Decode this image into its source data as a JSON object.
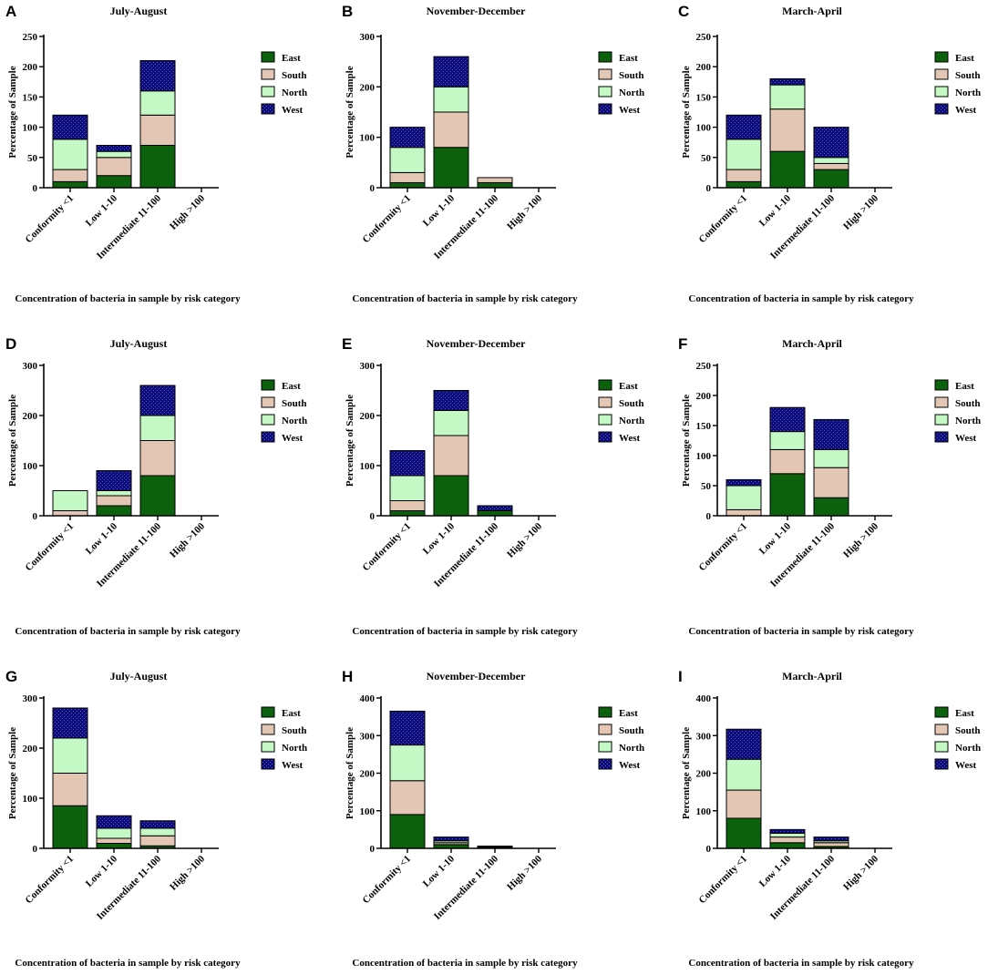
{
  "colors": {
    "East": "#0c620c",
    "South": "#e3c7b4",
    "North": "#c4f8c4",
    "West": "#0b0c7a",
    "axis": "#000000"
  },
  "chart_data": [
    {
      "panel": "A",
      "type": "bar",
      "stacked": true,
      "title": "July-August",
      "ylabel": "Percentage of Sample",
      "xlabel": "Concentration of bacteria in sample by risk category",
      "categories": [
        "Conformity <1",
        "Low 1-10",
        "Intermediate 11-100",
        "High >100"
      ],
      "ylim": [
        0,
        250
      ],
      "yticks": [
        0,
        50,
        100,
        150,
        200,
        250
      ],
      "legend": [
        "East",
        "South",
        "North",
        "West"
      ],
      "series": [
        {
          "name": "East",
          "values": [
            10,
            20,
            70,
            0
          ]
        },
        {
          "name": "South",
          "values": [
            20,
            30,
            50,
            0
          ]
        },
        {
          "name": "North",
          "values": [
            50,
            10,
            40,
            0
          ]
        },
        {
          "name": "West",
          "values": [
            40,
            10,
            50,
            0
          ]
        }
      ]
    },
    {
      "panel": "B",
      "type": "bar",
      "stacked": true,
      "title": "November-December",
      "ylabel": "Percentage of Sample",
      "xlabel": "Concentration of bacteria in sample by risk category",
      "categories": [
        "Conformity <1",
        "Low 1-10",
        "Intermediate 11-100",
        "High >100"
      ],
      "ylim": [
        0,
        300
      ],
      "yticks": [
        0,
        100,
        200,
        300
      ],
      "legend": [
        "East",
        "South",
        "North",
        "West"
      ],
      "series": [
        {
          "name": "East",
          "values": [
            10,
            80,
            10,
            0
          ]
        },
        {
          "name": "South",
          "values": [
            20,
            70,
            10,
            0
          ]
        },
        {
          "name": "North",
          "values": [
            50,
            50,
            0,
            0
          ]
        },
        {
          "name": "West",
          "values": [
            40,
            60,
            0,
            0
          ]
        }
      ]
    },
    {
      "panel": "C",
      "type": "bar",
      "stacked": true,
      "title": "March-April",
      "ylabel": "Percentage of Sample",
      "xlabel": "Concentration of bacteria in sample by risk category",
      "categories": [
        "Conformity <1",
        "Low 1-10",
        "Intermediate 11-100",
        "High >100"
      ],
      "ylim": [
        0,
        250
      ],
      "yticks": [
        0,
        50,
        100,
        150,
        200,
        250
      ],
      "legend": [
        "East",
        "South",
        "North",
        "West"
      ],
      "series": [
        {
          "name": "East",
          "values": [
            10,
            60,
            30,
            0
          ]
        },
        {
          "name": "South",
          "values": [
            20,
            70,
            10,
            0
          ]
        },
        {
          "name": "North",
          "values": [
            50,
            40,
            10,
            0
          ]
        },
        {
          "name": "West",
          "values": [
            40,
            10,
            50,
            0
          ]
        }
      ]
    },
    {
      "panel": "D",
      "type": "bar",
      "stacked": true,
      "title": "July-August",
      "ylabel": "Percentage of Sample",
      "xlabel": "Concentration of bacteria in sample by risk category",
      "categories": [
        "Conformity <1",
        "Low 1-10",
        "Intermediate 11-100",
        "High >100"
      ],
      "ylim": [
        0,
        300
      ],
      "yticks": [
        0,
        100,
        200,
        300
      ],
      "legend": [
        "East",
        "South",
        "North",
        "West"
      ],
      "series": [
        {
          "name": "East",
          "values": [
            0,
            20,
            80,
            0
          ]
        },
        {
          "name": "South",
          "values": [
            10,
            20,
            70,
            0
          ]
        },
        {
          "name": "North",
          "values": [
            40,
            10,
            50,
            0
          ]
        },
        {
          "name": "West",
          "values": [
            0,
            40,
            60,
            0
          ]
        }
      ]
    },
    {
      "panel": "E",
      "type": "bar",
      "stacked": true,
      "title": "November-December",
      "ylabel": "Percentage of Sample",
      "xlabel": "Concentration of bacteria in sample by risk category",
      "categories": [
        "Conformity <1",
        "Low 1-10",
        "Intermediate 11-100",
        "High >100"
      ],
      "ylim": [
        0,
        300
      ],
      "yticks": [
        0,
        100,
        200,
        300
      ],
      "legend": [
        "East",
        "South",
        "North",
        "West"
      ],
      "series": [
        {
          "name": "East",
          "values": [
            10,
            80,
            10,
            0
          ]
        },
        {
          "name": "South",
          "values": [
            20,
            80,
            0,
            0
          ]
        },
        {
          "name": "North",
          "values": [
            50,
            50,
            0,
            0
          ]
        },
        {
          "name": "West",
          "values": [
            50,
            40,
            10,
            0
          ]
        }
      ]
    },
    {
      "panel": "F",
      "type": "bar",
      "stacked": true,
      "title": "March-April",
      "ylabel": "Percentage of Sample",
      "xlabel": "Concentration of bacteria in sample by risk category",
      "categories": [
        "Conformity <1",
        "Low 1-10",
        "Intermediate 11-100",
        "High >100"
      ],
      "ylim": [
        0,
        250
      ],
      "yticks": [
        0,
        50,
        100,
        150,
        200,
        250
      ],
      "legend": [
        "East",
        "South",
        "North",
        "West"
      ],
      "series": [
        {
          "name": "East",
          "values": [
            0,
            70,
            30,
            0
          ]
        },
        {
          "name": "South",
          "values": [
            10,
            40,
            50,
            0
          ]
        },
        {
          "name": "North",
          "values": [
            40,
            30,
            30,
            0
          ]
        },
        {
          "name": "West",
          "values": [
            10,
            40,
            50,
            0
          ]
        }
      ]
    },
    {
      "panel": "G",
      "type": "bar",
      "stacked": true,
      "title": "July-August",
      "ylabel": "Percentage of Sample",
      "xlabel": "Concentration of bacteria in sample by risk category",
      "categories": [
        "Conformity <1",
        "Low 1-10",
        "Intermediate 11-100",
        "High >100"
      ],
      "ylim": [
        0,
        300
      ],
      "yticks": [
        0,
        100,
        200,
        300
      ],
      "legend": [
        "East",
        "South",
        "North",
        "West"
      ],
      "series": [
        {
          "name": "East",
          "values": [
            85,
            10,
            5,
            0
          ]
        },
        {
          "name": "South",
          "values": [
            65,
            10,
            20,
            0
          ]
        },
        {
          "name": "North",
          "values": [
            70,
            20,
            15,
            0
          ]
        },
        {
          "name": "West",
          "values": [
            60,
            25,
            15,
            0
          ]
        }
      ]
    },
    {
      "panel": "H",
      "type": "bar",
      "stacked": true,
      "title": "November-December",
      "ylabel": "Percentage of Sample",
      "xlabel": "Concentration of bacteria in sample by risk category",
      "categories": [
        "Conformity <1",
        "Low 1-10",
        "Intermediate 11-100",
        "High >100"
      ],
      "ylim": [
        0,
        400
      ],
      "yticks": [
        0,
        100,
        200,
        300,
        400
      ],
      "legend": [
        "East",
        "South",
        "North",
        "West"
      ],
      "series": [
        {
          "name": "East",
          "values": [
            90,
            10,
            2,
            0
          ]
        },
        {
          "name": "South",
          "values": [
            90,
            5,
            1,
            0
          ]
        },
        {
          "name": "North",
          "values": [
            95,
            5,
            1,
            0
          ]
        },
        {
          "name": "West",
          "values": [
            90,
            10,
            2,
            0
          ]
        }
      ]
    },
    {
      "panel": "I",
      "type": "bar",
      "stacked": true,
      "title": "March-April",
      "ylabel": "Percentage of Sample",
      "xlabel": "Concentration of bacteria in sample by risk category",
      "categories": [
        "Conformity <1",
        "Low 1-10",
        "Intermediate 11-100",
        "High >100"
      ],
      "ylim": [
        0,
        400
      ],
      "yticks": [
        0,
        100,
        200,
        300,
        400
      ],
      "legend": [
        "East",
        "South",
        "North",
        "West"
      ],
      "series": [
        {
          "name": "East",
          "values": [
            80,
            15,
            5,
            0
          ]
        },
        {
          "name": "South",
          "values": [
            75,
            15,
            10,
            0
          ]
        },
        {
          "name": "North",
          "values": [
            82,
            10,
            5,
            0
          ]
        },
        {
          "name": "West",
          "values": [
            80,
            10,
            10,
            0
          ]
        }
      ]
    }
  ]
}
